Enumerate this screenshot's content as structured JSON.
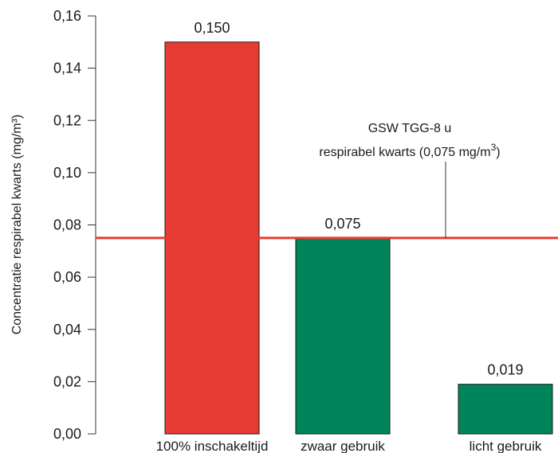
{
  "chart_data": {
    "type": "bar",
    "categories": [
      "100% inschakeltijd",
      "zwaar gebruik",
      "licht gebruik"
    ],
    "values": [
      0.15,
      0.075,
      0.019
    ],
    "value_labels": [
      "0,150",
      "0,075",
      "0,019"
    ],
    "bar_colors": [
      "#e63c33",
      "#00845a",
      "#00845a"
    ],
    "ylabel": "Concentratie respirabel kwarts (mg/m³)",
    "ylim": [
      0,
      0.16
    ],
    "yticks": [
      0.0,
      0.02,
      0.04,
      0.06,
      0.08,
      0.1,
      0.12,
      0.14,
      0.16
    ],
    "ytick_labels": [
      "0,00",
      "0,02",
      "0,04",
      "0,06",
      "0,08",
      "0,10",
      "0,12",
      "0,14",
      "0,16"
    ],
    "grid": false,
    "reference_line": {
      "value": 0.075,
      "color": "#e63c33",
      "label_line1": "GSW TGG-8 u",
      "label_line2": "respirabel kwarts (0,075 mg/m",
      "label_sup": "3",
      "label_close": ")"
    }
  }
}
